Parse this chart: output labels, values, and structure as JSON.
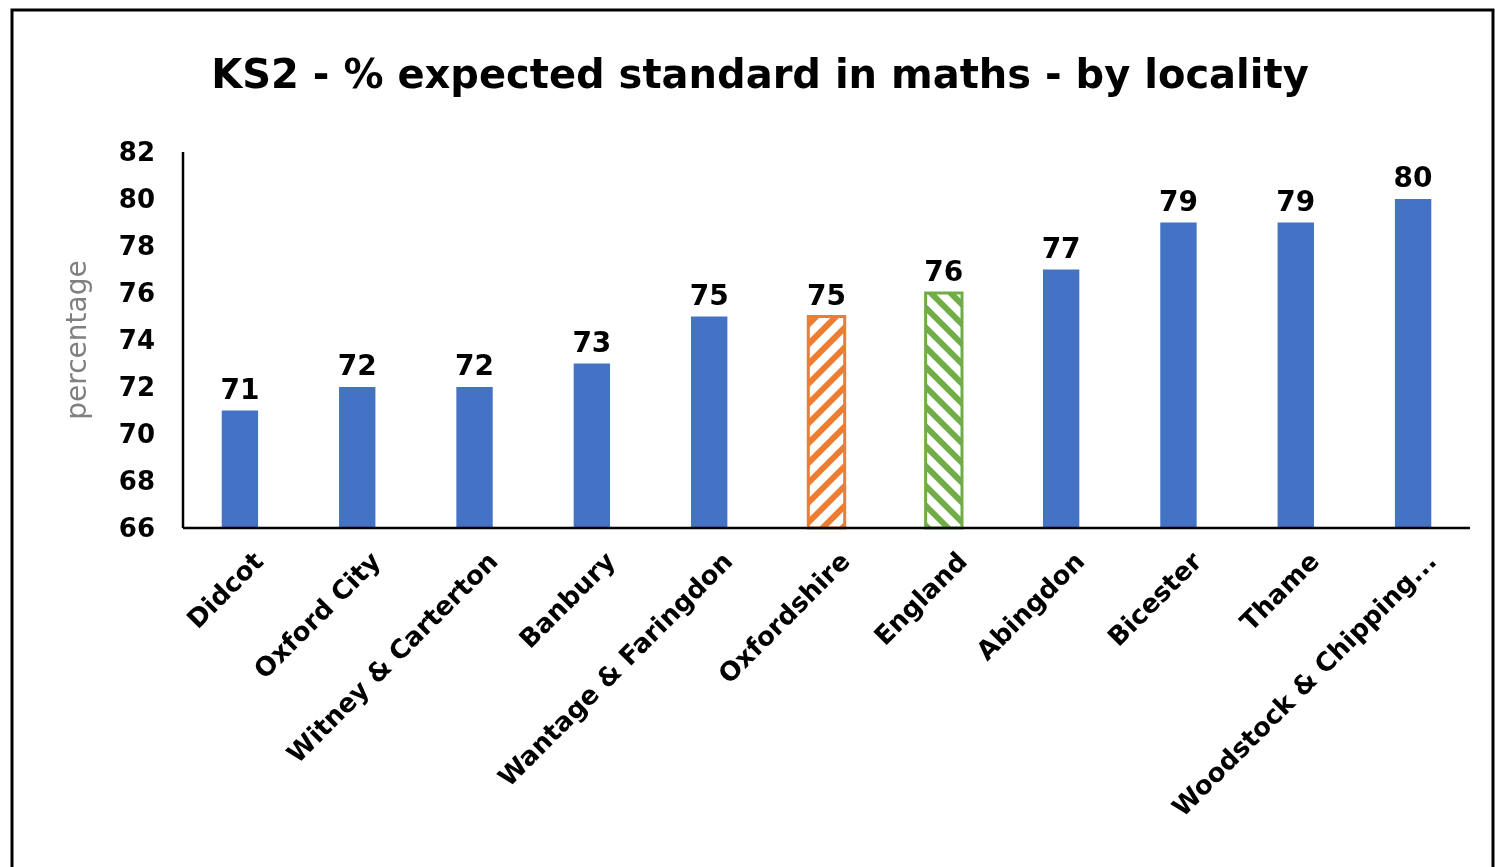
{
  "chart_data": {
    "type": "bar",
    "title": "KS2 - % expected standard in maths - by locality",
    "ylabel": "percentage",
    "categories": [
      "Didcot",
      "Oxford City",
      "Witney & Carterton",
      "Banbury",
      "Wantage & Faringdon",
      "Oxfordshire",
      "England",
      "Abingdon",
      "Bicester",
      "Thame",
      "Woodstock & Chipping..."
    ],
    "values": [
      71,
      72,
      72,
      73,
      75,
      75,
      76,
      77,
      79,
      79,
      80
    ],
    "colors": [
      "#4472c4",
      "#4472c4",
      "#4472c4",
      "#4472c4",
      "#4472c4",
      "#ed7d31",
      "#70ad47",
      "#4472c4",
      "#4472c4",
      "#4472c4",
      "#4472c4"
    ],
    "ylim": [
      66,
      82
    ],
    "yticks": [
      66,
      68,
      70,
      72,
      74,
      76,
      78,
      80,
      82
    ],
    "data_labels": true,
    "grid": false
  }
}
